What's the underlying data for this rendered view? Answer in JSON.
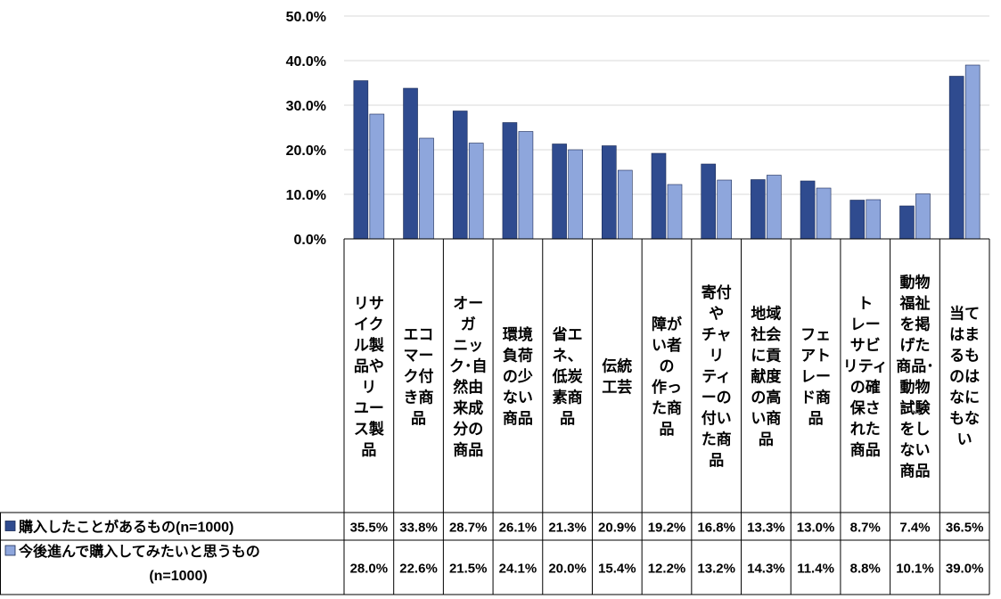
{
  "chart_data": {
    "type": "bar",
    "ylim": [
      0,
      50
    ],
    "yticks": [
      "0.0%",
      "10.0%",
      "20.0%",
      "30.0%",
      "40.0%",
      "50.0%"
    ],
    "grid": true,
    "categories": [
      "リサイクル製品やリユース製品",
      "エコマーク付き商品",
      "オーガニック・自然由来成分の商品",
      "環境負荷の少ない商品",
      "省エネ、低炭素商品",
      "伝統工芸",
      "障がい者の作った商品",
      "寄付やチャリティーの付いた商品",
      "地域社会に貢献度の高い商品",
      "フェアトレード商品",
      "トレーサビリティの確保された商品",
      "動物福祉を掲げた商品・動物試験をしない商品",
      "当てはまるものはなにもない"
    ],
    "category_lines": [
      [
        "リサ",
        "イク",
        "ル製",
        "品や",
        "リ",
        "ユー",
        "ス製",
        "品"
      ],
      [
        "エコ",
        "マー",
        "ク付",
        "き商",
        "品"
      ],
      [
        "オー",
        "ガ",
        "ニッ",
        "ク･自",
        "然由",
        "来成",
        "分の",
        "商品"
      ],
      [
        "環境",
        "負荷",
        "の少",
        "ない",
        "商品"
      ],
      [
        "省エ",
        "ネ、",
        "低炭",
        "素商",
        "品"
      ],
      [
        "伝統",
        "工芸"
      ],
      [
        "障が",
        "い者",
        "の",
        "作っ",
        "た商",
        "品"
      ],
      [
        "寄付",
        "や",
        "チャ",
        "リ",
        "ティ",
        "ーの",
        "付い",
        "た商",
        "品"
      ],
      [
        "地域",
        "社会",
        "に貢",
        "献度",
        "の高",
        "い商",
        "品"
      ],
      [
        "フェ",
        "アト",
        "レー",
        "ド商",
        "品"
      ],
      [
        "ト",
        "レー",
        "サビ",
        "リティ",
        "の確",
        "保さ",
        "れた",
        "商品"
      ],
      [
        "動物",
        "福祉",
        "を掲",
        "げた",
        "商品･",
        "動物",
        "試験",
        "をし",
        "ない",
        "商品"
      ],
      [
        "当て",
        "はま",
        "るも",
        "のは",
        "なに",
        "もな",
        "い"
      ]
    ],
    "series": [
      {
        "name": "購入したことがあるもの(n=1000)",
        "name_lines": [
          "購入したことがあるもの(n=1000)"
        ],
        "color": "#2f4b8f",
        "values": [
          35.5,
          33.8,
          28.7,
          26.1,
          21.3,
          20.9,
          19.2,
          16.8,
          13.3,
          13.0,
          8.7,
          7.4,
          36.5
        ],
        "labels": [
          "35.5%",
          "33.8%",
          "28.7%",
          "26.1%",
          "21.3%",
          "20.9%",
          "19.2%",
          "16.8%",
          "13.3%",
          "13.0%",
          "8.7%",
          "7.4%",
          "36.5%"
        ]
      },
      {
        "name": "今後進んで購入してみたいと思うもの(n=1000)",
        "name_lines": [
          "今後進んで購入してみたいと思うもの",
          "(n=1000)"
        ],
        "color": "#8ea6dc",
        "values": [
          28.0,
          22.6,
          21.5,
          24.1,
          20.0,
          15.4,
          12.2,
          13.2,
          14.3,
          11.4,
          8.8,
          10.1,
          39.0
        ],
        "labels": [
          "28.0%",
          "22.6%",
          "21.5%",
          "24.1%",
          "20.0%",
          "15.4%",
          "12.2%",
          "13.2%",
          "14.3%",
          "11.4%",
          "8.8%",
          "10.1%",
          "39.0%"
        ]
      }
    ]
  }
}
